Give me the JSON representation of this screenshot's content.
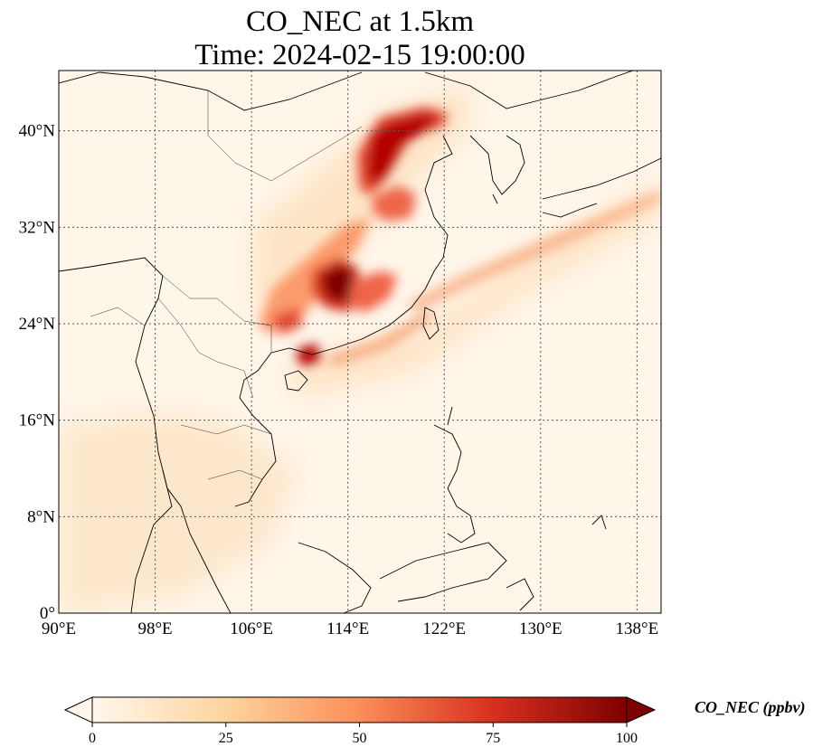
{
  "title": {
    "line1": "CO_NEC at 1.5km",
    "line2": "Time: 2024-02-15 19:00:00"
  },
  "map": {
    "extent": {
      "lon": [
        90,
        140
      ],
      "lat": [
        0,
        45
      ]
    },
    "lon_ticks": [
      {
        "value": 90,
        "label": "90°E"
      },
      {
        "value": 98,
        "label": "98°E"
      },
      {
        "value": 106,
        "label": "106°E"
      },
      {
        "value": 114,
        "label": "114°E"
      },
      {
        "value": 122,
        "label": "122°E"
      },
      {
        "value": 130,
        "label": "130°E"
      },
      {
        "value": 138,
        "label": "138°E"
      }
    ],
    "lat_ticks": [
      {
        "value": 0,
        "label": "0°"
      },
      {
        "value": 8,
        "label": "8°N"
      },
      {
        "value": 16,
        "label": "16°N"
      },
      {
        "value": 24,
        "label": "24°N"
      },
      {
        "value": 32,
        "label": "32°N"
      },
      {
        "value": 40,
        "label": "40°N"
      }
    ],
    "gridlines": true,
    "plumes": [
      {
        "lon": 117.5,
        "lat": 38.5,
        "value": 100
      },
      {
        "lon": 116.2,
        "lat": 36.5,
        "value": 100
      },
      {
        "lon": 114.0,
        "lat": 27.5,
        "value": 100
      },
      {
        "lon": 111.0,
        "lat": 21.0,
        "value": 95
      },
      {
        "lon": 119.5,
        "lat": 35.0,
        "value": 80
      },
      {
        "lon": 120.0,
        "lat": 41.0,
        "value": 85
      },
      {
        "lon": 112.0,
        "lat": 29.5,
        "value": 60
      },
      {
        "lon": 109.5,
        "lat": 23.5,
        "value": 60
      },
      {
        "lon": 128.0,
        "lat": 29.0,
        "value": 35
      },
      {
        "lon": 134.0,
        "lat": 33.0,
        "value": 25
      }
    ]
  },
  "colorbar": {
    "label": "CO_NEC (ppbv)",
    "ticks": [
      {
        "value": 0,
        "label": "0"
      },
      {
        "value": 25,
        "label": "25"
      },
      {
        "value": 50,
        "label": "50"
      },
      {
        "value": 75,
        "label": "75"
      },
      {
        "value": 100,
        "label": "100"
      }
    ],
    "range": [
      0,
      100
    ],
    "colormap": "OrRd",
    "colors": [
      "#fff7ec",
      "#fdd49e",
      "#fc8d59",
      "#d7301f",
      "#7f0000"
    ]
  }
}
